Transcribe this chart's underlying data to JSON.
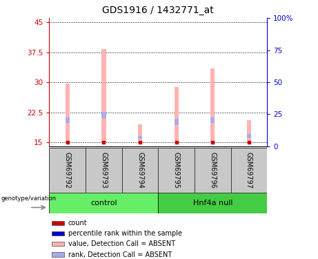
{
  "title": "GDS1916 / 1432771_at",
  "samples": [
    "GSM69792",
    "GSM69793",
    "GSM69794",
    "GSM69795",
    "GSM69796",
    "GSM69797"
  ],
  "group_labels": [
    "control",
    "Hnf4a null"
  ],
  "ylim_left": [
    14,
    46
  ],
  "ylim_right": [
    0,
    100
  ],
  "yticks_left": [
    15,
    22.5,
    30,
    37.5,
    45
  ],
  "yticks_right": [
    0,
    25,
    50,
    75,
    100
  ],
  "ytick_labels_left": [
    "15",
    "22.5",
    "30",
    "37.5",
    "45"
  ],
  "ytick_labels_right": [
    "0",
    "25",
    "50",
    "75",
    "100%"
  ],
  "pink_bar_tops": [
    29.7,
    38.2,
    19.5,
    28.8,
    33.5,
    20.5
  ],
  "pink_bar_bottoms": [
    15.0,
    15.0,
    15.0,
    15.0,
    15.0,
    15.0
  ],
  "blue_seg_top": [
    21.2,
    22.6,
    16.6,
    20.8,
    21.3,
    17.1
  ],
  "blue_seg_bottom": [
    19.8,
    21.0,
    15.8,
    19.4,
    19.8,
    16.0
  ],
  "red_dot_y": [
    15.0,
    15.0,
    15.0,
    15.0,
    15.0,
    15.0
  ],
  "bar_width": 0.12,
  "pink_color": "#FFB3B3",
  "blue_color": "#AAAAEE",
  "red_color": "#CC0000",
  "sample_area_bg": "#C8C8C8",
  "control_group_color": "#66EE66",
  "null_group_color": "#44CC44",
  "left_axis_color": "#CC0000",
  "right_axis_color": "#0000CC",
  "legend_items": [
    {
      "color": "#CC0000",
      "label": "count"
    },
    {
      "color": "#0000CC",
      "label": "percentile rank within the sample"
    },
    {
      "color": "#FFB3B3",
      "label": "value, Detection Call = ABSENT"
    },
    {
      "color": "#AAAAEE",
      "label": "rank, Detection Call = ABSENT"
    }
  ]
}
